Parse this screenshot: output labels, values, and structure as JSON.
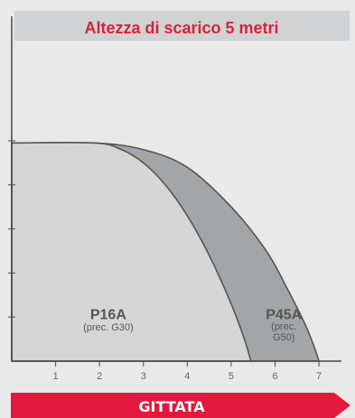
{
  "chart_data": {
    "type": "area",
    "title": "Altezza di scarico 5 metri",
    "xlabel": "GITTATA",
    "ylabel": "",
    "x_ticks": [
      1,
      2,
      3,
      4,
      5,
      6,
      7
    ],
    "xlim": [
      0,
      7.4
    ],
    "ylim": [
      0,
      5
    ],
    "y_ticks": [
      1,
      2,
      3,
      4,
      5
    ],
    "grid": false,
    "legend": "none",
    "series": [
      {
        "name": "P16A",
        "sublabel": "(prec. G30)",
        "color": "#d6d6d6",
        "x": [
          0,
          1.9,
          2.5,
          3.0,
          3.5,
          4.0,
          4.5,
          5.0,
          5.3,
          5.45
        ],
        "y": [
          4.95,
          4.95,
          4.8,
          4.5,
          4.0,
          3.3,
          2.4,
          1.3,
          0.5,
          0.0
        ]
      },
      {
        "name": "P45A",
        "sublabel": "(prec.\nG50)",
        "color": "#a3a6a8",
        "x": [
          0,
          1.9,
          3.0,
          4.0,
          5.0,
          5.8,
          6.3,
          6.7,
          6.9,
          7.0
        ],
        "y": [
          4.95,
          4.95,
          4.8,
          4.4,
          3.5,
          2.5,
          1.6,
          0.8,
          0.3,
          0.0
        ]
      }
    ]
  },
  "colors": {
    "background": "#e9e9e9",
    "title_band": "#d0d2d3",
    "title_text": "#d6243a",
    "axis": "#4a4a4a",
    "arrow_fill": "#e2183c",
    "arrow_text": "#ffffff",
    "label_text": "#555555"
  }
}
